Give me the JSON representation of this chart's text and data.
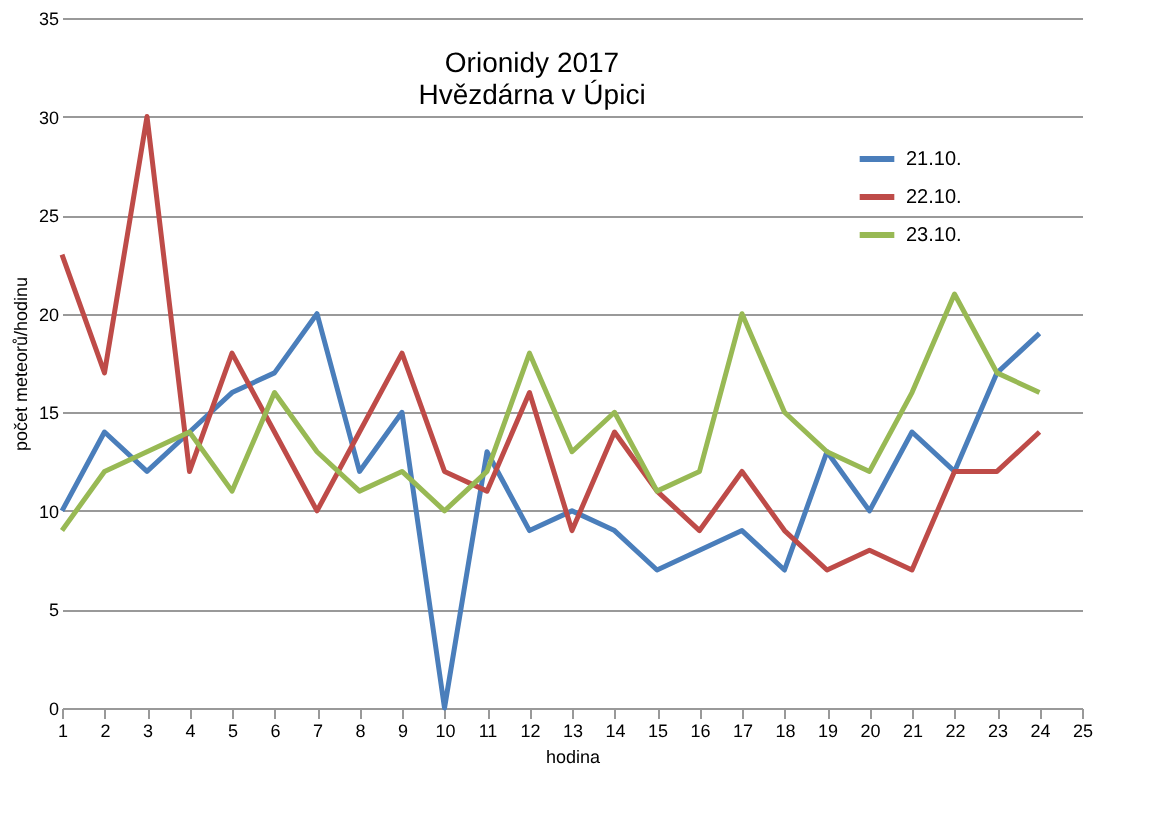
{
  "chart_data": {
    "type": "line",
    "title": [
      "Orionidy 2017",
      "Hvězdárna  v Úpici"
    ],
    "xlabel": "hodina",
    "ylabel": "počet meteorů/hodinu",
    "x": [
      1,
      2,
      3,
      4,
      5,
      6,
      7,
      8,
      9,
      10,
      11,
      12,
      13,
      14,
      15,
      16,
      17,
      18,
      19,
      20,
      21,
      22,
      23,
      24
    ],
    "series": [
      {
        "name": "21.10.",
        "color": "#4a7ebb",
        "values": [
          10,
          14,
          12,
          14,
          16,
          17,
          20,
          12,
          15,
          0,
          13,
          9,
          10,
          9,
          7,
          8,
          9,
          7,
          13,
          10,
          14,
          12,
          17,
          19
        ]
      },
      {
        "name": "22.10.",
        "color": "#be4b48",
        "values": [
          23,
          17,
          30,
          12,
          18,
          14,
          10,
          14,
          18,
          12,
          11,
          16,
          9,
          14,
          11,
          9,
          12,
          9,
          7,
          8,
          7,
          12,
          12,
          14
        ]
      },
      {
        "name": "23.10.",
        "color": "#98b954",
        "values": [
          9,
          12,
          13,
          14,
          11,
          16,
          13,
          11,
          12,
          10,
          12,
          18,
          13,
          15,
          11,
          12,
          20,
          15,
          13,
          12,
          16,
          21,
          17,
          16
        ]
      }
    ],
    "xlim": [
      1,
      25
    ],
    "xticks": [
      1,
      2,
      3,
      4,
      5,
      6,
      7,
      8,
      9,
      10,
      11,
      12,
      13,
      14,
      15,
      16,
      17,
      18,
      19,
      20,
      21,
      22,
      23,
      24,
      25
    ],
    "ylim": [
      0,
      35
    ],
    "yticks": [
      0,
      5,
      10,
      15,
      20,
      25,
      30,
      35
    ],
    "grid": "y",
    "legend": "top right",
    "marker": "none",
    "line_style": "solid"
  }
}
